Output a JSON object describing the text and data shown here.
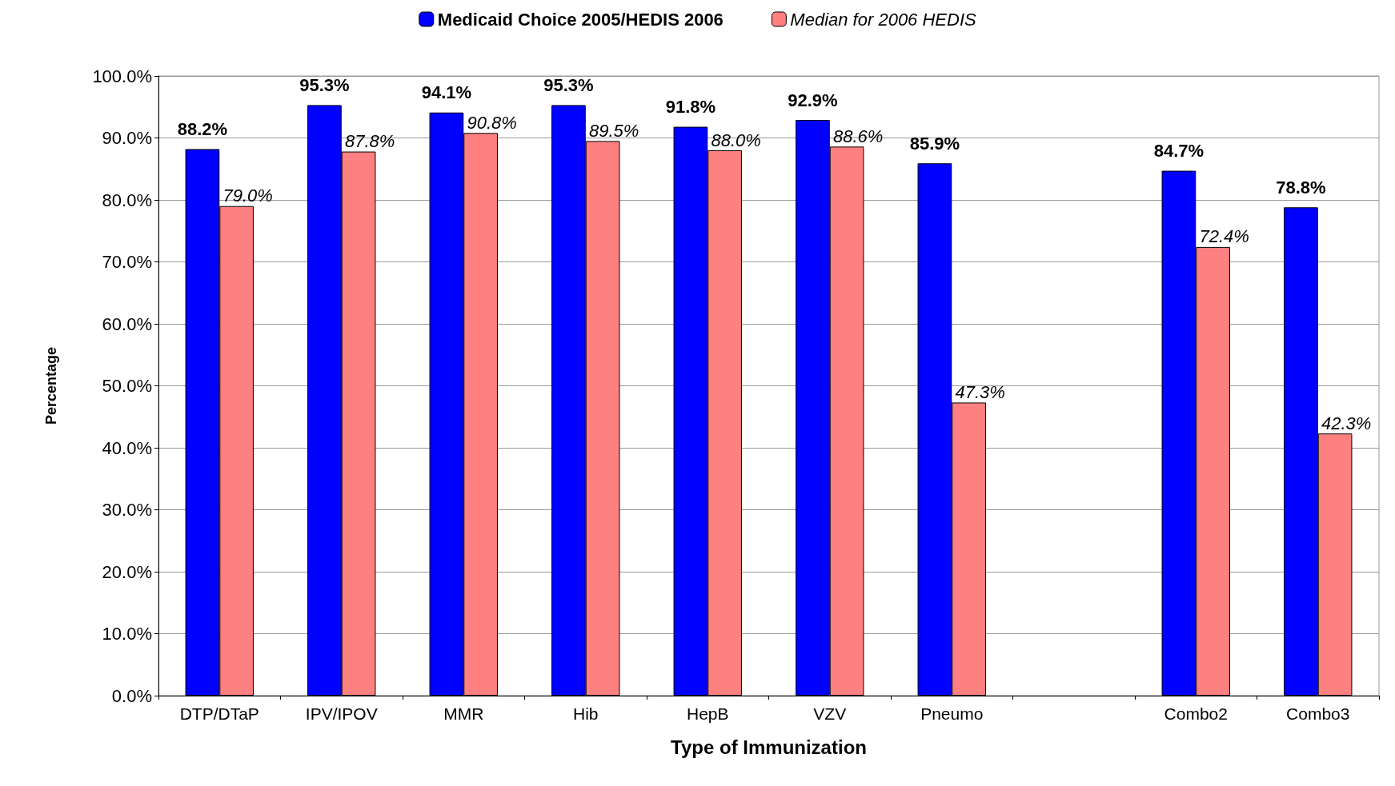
{
  "chart_data": {
    "type": "bar",
    "xlabel": "Type of Immunization",
    "ylabel": "Percentage",
    "categories": [
      "DTP/DTaP",
      "IPV/IPOV",
      "MMR",
      "Hib",
      "HepB",
      "VZV",
      "Pneumo",
      null,
      "Combo2",
      "Combo3"
    ],
    "series": [
      {
        "name": "Medicaid Choice 2005/HEDIS 2006",
        "color": "#0000ff",
        "values": [
          88.2,
          95.3,
          94.1,
          95.3,
          91.8,
          92.9,
          85.9,
          null,
          84.7,
          78.8
        ],
        "value_labels": [
          "88.2%",
          "95.3%",
          "94.1%",
          "95.3%",
          "91.8%",
          "92.9%",
          "85.9%",
          null,
          "84.7%",
          "78.8%"
        ]
      },
      {
        "name": "Median for 2006 HEDIS",
        "color": "#ff8080",
        "values": [
          79.0,
          87.8,
          90.8,
          89.5,
          88.0,
          88.6,
          47.3,
          null,
          72.4,
          42.3
        ],
        "value_labels": [
          "79.0%",
          "87.8%",
          "90.8%",
          "89.5%",
          "88.0%",
          "88.6%",
          "47.3%",
          null,
          "72.4%",
          "42.3%"
        ]
      }
    ],
    "ylim": [
      0,
      100
    ],
    "yticks": [
      {
        "value": 0,
        "label": "0.0%"
      },
      {
        "value": 10,
        "label": "10.0%"
      },
      {
        "value": 20,
        "label": "20.0%"
      },
      {
        "value": 30,
        "label": "30.0%"
      },
      {
        "value": 40,
        "label": "40.0%"
      },
      {
        "value": 50,
        "label": "50.0%"
      },
      {
        "value": 60,
        "label": "60.0%"
      },
      {
        "value": 70,
        "label": "70.0%"
      },
      {
        "value": 80,
        "label": "80.0%"
      },
      {
        "value": 90,
        "label": "90.0%"
      },
      {
        "value": 100,
        "label": "100.0%"
      }
    ],
    "grid": "y",
    "legend": "top"
  }
}
